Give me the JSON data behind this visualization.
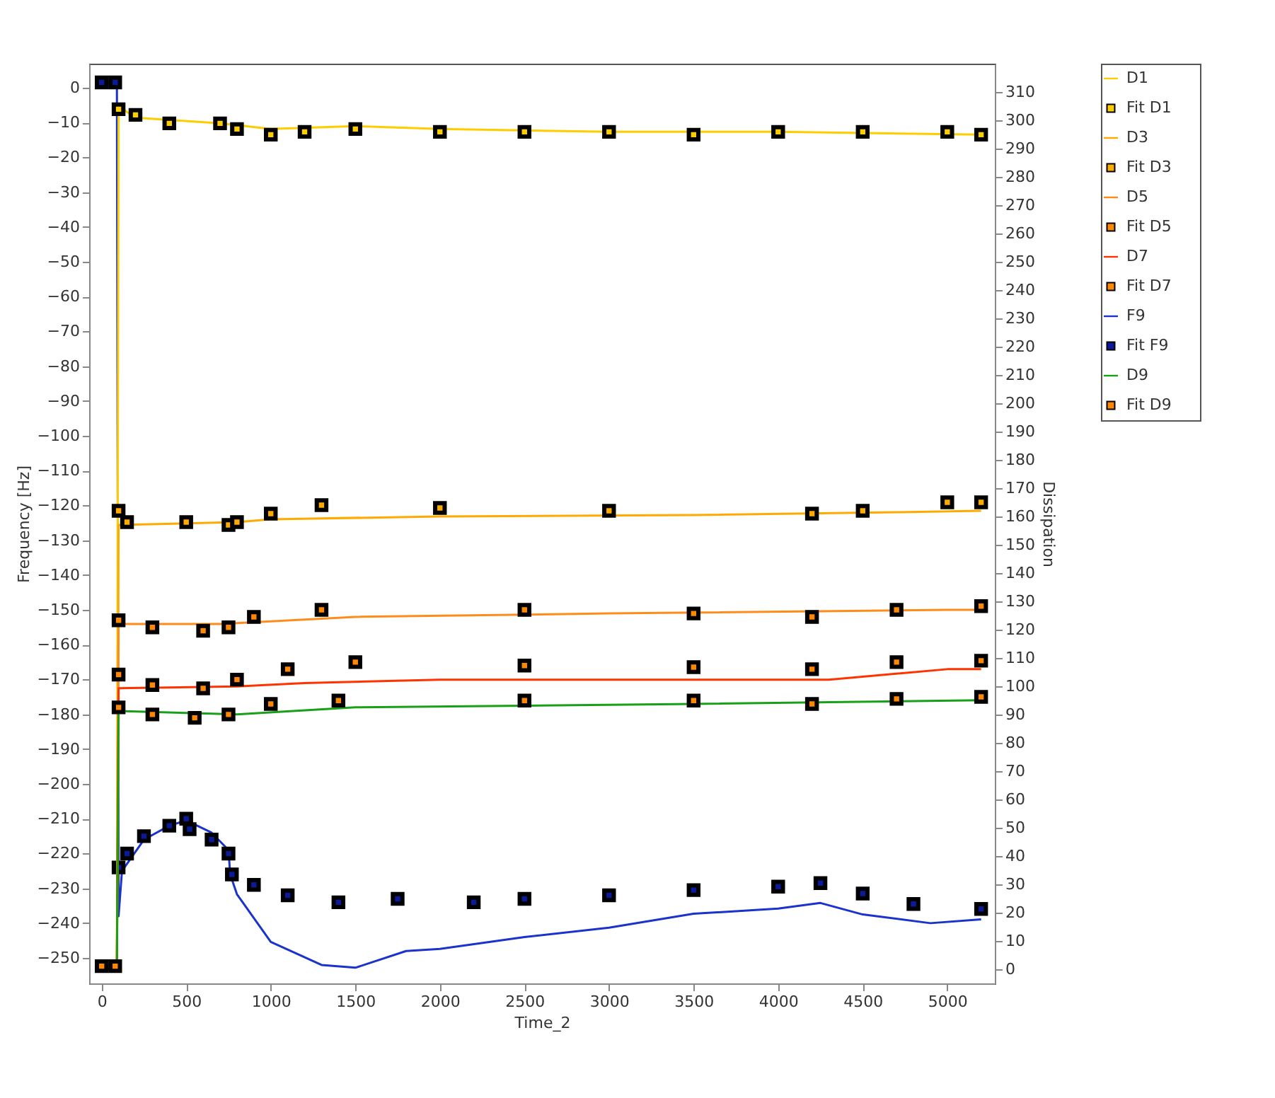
{
  "chart_data": {
    "type": "line",
    "xlabel": "Time_2",
    "ylabel": "Frequency [Hz]",
    "y2label": "Dissipation",
    "xlim": [
      -74,
      5281
    ],
    "xticks": [
      0,
      500,
      1000,
      1500,
      2000,
      2500,
      3000,
      3500,
      4000,
      4500,
      5000
    ],
    "ylim": [
      -257.3,
      6.9
    ],
    "yticks": [
      -250,
      -240,
      -230,
      -220,
      -210,
      -200,
      -190,
      -180,
      -170,
      -160,
      -150,
      -140,
      -130,
      -120,
      -110,
      -100,
      -90,
      -80,
      -70,
      -60,
      -50,
      -40,
      -30,
      -20,
      -10,
      0
    ],
    "y2lim": [
      -5.1,
      320.1
    ],
    "y2ticks": [
      0,
      10,
      20,
      30,
      40,
      50,
      60,
      70,
      80,
      90,
      100,
      110,
      120,
      130,
      140,
      150,
      160,
      170,
      180,
      190,
      200,
      210,
      220,
      230,
      240,
      250,
      260,
      270,
      280,
      290,
      300,
      310
    ],
    "grid": false,
    "legend": "right",
    "series": [
      {
        "name": "D1",
        "axis": "y2",
        "color": "#ffcc00",
        "x": [
          0,
          90,
          100,
          200,
          700,
          1000,
          1500,
          2000,
          3000,
          4000,
          5200
        ],
        "values": [
          0,
          0,
          305,
          301,
          299,
          297,
          298,
          297,
          296,
          296,
          295
        ]
      },
      {
        "name": "Fit D1",
        "type": "scatter",
        "marker": "square",
        "axis": "y2",
        "color": "#ffcc00",
        "x": [
          100,
          200,
          400,
          700,
          800,
          1000,
          1200,
          1500,
          2000,
          2500,
          3000,
          3500,
          4000,
          4500,
          5000,
          5200
        ],
        "values": [
          304,
          302,
          299,
          299,
          297,
          295,
          296,
          297,
          296,
          296,
          296,
          295,
          296,
          296,
          296,
          295
        ]
      },
      {
        "name": "D3",
        "axis": "y2",
        "color": "#ffaa00",
        "x": [
          0,
          90,
          100,
          800,
          1000,
          2000,
          3500,
          4700,
          5200
        ],
        "values": [
          0,
          0,
          157,
          158,
          159,
          160,
          160.5,
          161.5,
          162
        ]
      },
      {
        "name": "Fit D3",
        "type": "scatter",
        "marker": "square",
        "axis": "y2",
        "color": "#ffaa00",
        "x": [
          100,
          150,
          500,
          750,
          800,
          1000,
          1300,
          2000,
          3000,
          4200,
          4500,
          5000,
          5200
        ],
        "values": [
          162,
          158,
          158,
          157,
          158,
          161,
          164,
          163,
          162,
          161,
          162,
          165,
          165
        ]
      },
      {
        "name": "D5",
        "axis": "y2",
        "color": "#ff8c1a",
        "x": [
          0,
          90,
          100,
          700,
          1500,
          3000,
          5000,
          5200
        ],
        "values": [
          0,
          0,
          122,
          122,
          124.5,
          125.7,
          127,
          127
        ]
      },
      {
        "name": "Fit D5",
        "type": "scatter",
        "marker": "square",
        "axis": "y2",
        "color": "#ff8800",
        "x": [
          100,
          300,
          600,
          750,
          900,
          1300,
          2500,
          3500,
          4200,
          4700,
          5200
        ],
        "values": [
          123.3,
          120.8,
          119.6,
          120.8,
          124.5,
          127,
          127,
          125.7,
          124.5,
          127,
          128.3
        ]
      },
      {
        "name": "D7",
        "axis": "y2",
        "color": "#ff3300",
        "x": [
          0,
          90,
          100,
          800,
          1200,
          2000,
          4300,
          5000,
          5200
        ],
        "values": [
          0,
          0,
          99.3,
          99.9,
          101.1,
          102.3,
          102.3,
          106,
          106
        ]
      },
      {
        "name": "Fit D7",
        "type": "scatter",
        "marker": "square",
        "axis": "y2",
        "color": "#ff8800",
        "x": [
          100,
          300,
          600,
          800,
          1100,
          1500,
          2500,
          3500,
          4200,
          4700,
          5200
        ],
        "values": [
          104.1,
          100.4,
          99.2,
          102.3,
          106,
          108.5,
          107.3,
          106.7,
          106,
          108.5,
          109
        ]
      },
      {
        "name": "F9",
        "color": "#1a33cc",
        "x": [
          0,
          90,
          100,
          120,
          250,
          400,
          500,
          650,
          750,
          760,
          800,
          1000,
          1300,
          1500,
          1800,
          2000,
          2500,
          3000,
          3500,
          4000,
          4250,
          4500,
          4900,
          5200
        ],
        "values": [
          1,
          2,
          -238,
          -225,
          -216,
          -212,
          -210.5,
          -214,
          -219,
          -226,
          -231.7,
          -245.4,
          -252,
          -252.8,
          -248,
          -247.4,
          -244,
          -241.3,
          -237.3,
          -235.8,
          -234.2,
          -237.5,
          -240,
          -238.9
        ]
      },
      {
        "name": "Fit F9",
        "type": "scatter",
        "marker": "square",
        "color": "#0a1a99",
        "x": [
          0,
          80,
          100,
          150,
          250,
          400,
          500,
          520,
          650,
          750,
          770,
          900,
          1100,
          1400,
          1750,
          2200,
          2500,
          3000,
          3500,
          4000,
          4250,
          4500,
          4800,
          5200
        ],
        "values": [
          1.5,
          1.5,
          -224,
          -220,
          -215,
          -212,
          -210,
          -213,
          -216,
          -220,
          -226,
          -229,
          -232,
          -234,
          -233,
          -234,
          -233,
          -232,
          -230.5,
          -229.5,
          -228.5,
          -231.5,
          -234.5,
          -235.9
        ]
      },
      {
        "name": "D9",
        "axis": "y2",
        "color": "#19a019",
        "x": [
          0,
          90,
          100,
          800,
          1500,
          2500,
          3500,
          5200
        ],
        "values": [
          0,
          0,
          91.2,
          90,
          92.5,
          93.1,
          93.7,
          95
        ]
      },
      {
        "name": "Fit D9",
        "type": "scatter",
        "marker": "square",
        "axis": "y2",
        "color": "#ff8800",
        "x": [
          0,
          80,
          100,
          300,
          550,
          750,
          1000,
          1400,
          2500,
          3500,
          4200,
          4700,
          5200
        ],
        "values": [
          1,
          1,
          92.5,
          90,
          88.8,
          90,
          93.7,
          94.9,
          94.9,
          94.9,
          93.7,
          95.5,
          96.2
        ]
      }
    ]
  }
}
